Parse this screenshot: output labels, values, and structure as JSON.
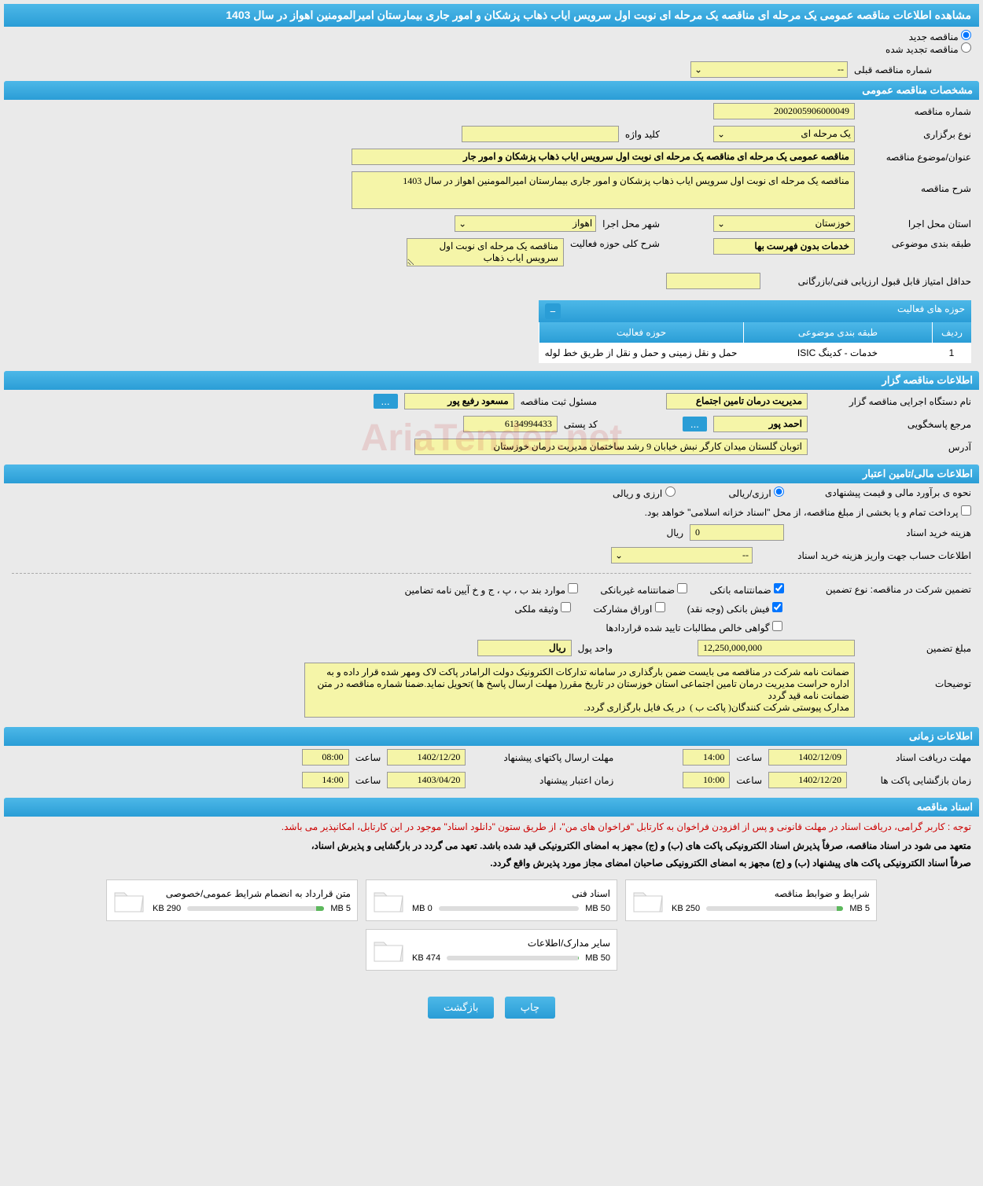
{
  "title": "مشاهده اطلاعات مناقصه عمومی یک مرحله ای مناقصه یک مرحله ای نوبت اول سرویس ایاب ذهاب پزشکان و امور جاری بیمارستان امیرالمومنین اهواز در سال 1403",
  "radios": {
    "new": "مناقصه جدید",
    "renewed": "مناقصه تجدید شده"
  },
  "prev_number": {
    "label": "شماره مناقصه قبلی",
    "value": "--"
  },
  "sections": {
    "general": "مشخصات مناقصه عمومی",
    "organizer": "اطلاعات مناقصه گزار",
    "financial": "اطلاعات مالی/تامین اعتبار",
    "timing": "اطلاعات زمانی",
    "documents": "اسناد مناقصه"
  },
  "general": {
    "tender_number": {
      "label": "شماره مناقصه",
      "value": "2002005906000049"
    },
    "holding_type": {
      "label": "نوع برگزاری",
      "value": "یک مرحله ای"
    },
    "keyword": {
      "label": "کلید واژه",
      "value": ""
    },
    "subject": {
      "label": "عنوان/موضوع مناقصه",
      "value": "مناقصه عمومی یک مرحله ای مناقصه یک مرحله ای نوبت اول سرویس ایاب ذهاب پزشکان و امور جار"
    },
    "description": {
      "label": "شرح مناقصه",
      "value": "مناقصه یک مرحله ای نوبت اول سرویس ایاب ذهاب پزشکان و امور جاری بیمارستان امیرالمومنین اهواز در سال 1403"
    },
    "province": {
      "label": "استان محل اجرا",
      "value": "خوزستان"
    },
    "city": {
      "label": "شهر محل اجرا",
      "value": "اهواز"
    },
    "category": {
      "label": "طبقه بندی موضوعی",
      "value": "خدمات بدون فهرست بها"
    },
    "activity_desc": {
      "label": "شرح کلی حوزه فعالیت",
      "value": "مناقصه یک مرحله ای نوبت اول سرویس ایاب ذهاب"
    },
    "min_score": {
      "label": "حداقل امتیاز قابل قبول ارزیابی فنی/بازرگانی",
      "value": ""
    }
  },
  "activity_table": {
    "title": "حوزه های فعالیت",
    "cols": [
      "ردیف",
      "طبقه بندی موضوعی",
      "حوزه فعالیت"
    ],
    "row": [
      "1",
      "خدمات - کدینگ ISIC",
      "حمل و نقل زمینی و حمل و نقل از طریق خط لوله"
    ]
  },
  "organizer": {
    "exec_name": {
      "label": "نام دستگاه اجرایی مناقصه گزار",
      "value": "مدیریت درمان تامین اجتماع"
    },
    "reg_officer": {
      "label": "مسئول ثبت مناقصه",
      "value": "مسعود رفیع پور"
    },
    "respondent": {
      "label": "مرجع پاسخگویی",
      "value": "احمد پور"
    },
    "postal_code": {
      "label": "کد پستی",
      "value": "6134994433"
    },
    "address": {
      "label": "آدرس",
      "value": "اتوبان گلستان میدان کارگر نبش خیابان 9 رشد ساختمان مدیریت درمان خوزستان"
    }
  },
  "financial": {
    "estimate_method": {
      "label": "نحوه ی برآورد مالی و قیمت پیشنهادی",
      "opt1": "ارزی/ریالی",
      "opt2": "ارزی و ریالی"
    },
    "payment_note": "پرداخت تمام و یا بخشی از مبلغ مناقصه، از محل \"اسناد خزانه اسلامی\" خواهد بود.",
    "doc_cost": {
      "label": "هزینه خرید اسناد",
      "value": "0",
      "unit": "ریال"
    },
    "account_info": {
      "label": "اطلاعات حساب جهت واریز هزینه خرید اسناد",
      "value": "--"
    },
    "guarantee_type": {
      "label": "تضمین شرکت در مناقصه:    نوع تضمین"
    },
    "guarantee_opts": {
      "bank_guarantee": "ضمانتنامه بانکی",
      "nonbank_guarantee": "ضمانتنامه غیربانکی",
      "bylaw_items": "موارد بند ب ، پ ، ج و خ آیین نامه تضامین",
      "bank_receipt": "فیش بانکی (وجه نقد)",
      "participation_bonds": "اوراق مشارکت",
      "property_deed": "وثیقه ملکی",
      "contract_receivables": "گواهی خالص مطالبات تایید شده قراردادها"
    },
    "guarantee_amount": {
      "label": "مبلغ تضمین",
      "value": "12,250,000,000"
    },
    "currency": {
      "label": "واحد پول",
      "value": "ریال"
    },
    "notes": {
      "label": "توضیحات",
      "value": "ضمانت نامه شرکت در مناقصه می بایست ضمن بارگذاری در سامانه تدارکات الکترونیک دولت الرامادر پاکت لاک ومهر شده قرار داده و به اداره حراست مدیریت درمان تامین اجتماعی استان خوزستان در تاریخ مقرر( مهلت ارسال پاسخ ها )تحویل نماید.ضمنا شماره مناقصه در متن ضمانت نامه قید گردد\nمدارک پیوستی شرکت کنندگان( پاکت ب )  در یک فایل بارگزاری گردد."
    }
  },
  "timing": {
    "receive_deadline": {
      "label": "مهلت دریافت اسناد",
      "date": "1402/12/09",
      "time_label": "ساعت",
      "time": "14:00"
    },
    "send_deadline": {
      "label": "مهلت ارسال پاکتهای پیشنهاد",
      "date": "1402/12/20",
      "time_label": "ساعت",
      "time": "08:00"
    },
    "opening_time": {
      "label": "زمان بازگشایی پاکت ها",
      "date": "1402/12/20",
      "time_label": "ساعت",
      "time": "10:00"
    },
    "validity_time": {
      "label": "زمان اعتبار پیشنهاد",
      "date": "1403/04/20",
      "time_label": "ساعت",
      "time": "14:00"
    }
  },
  "doc_notes": {
    "red": "توجه : کاربر گرامی، دریافت اسناد در مهلت قانونی و پس از افزودن فراخوان به کارتابل \"فراخوان های من\"، از طریق ستون \"دانلود اسناد\" موجود در این کارتابل، امکانپذیر می باشد.",
    "bold1": "متعهد می شود در اسناد مناقصه، صرفاً پذیرش اسناد الکترونیکی پاکت های (ب) و (ج) مجهز به امضای الکترونیکی قید شده باشد. تعهد می گردد در بارگشایی و پذیرش اسناد،",
    "bold2": "صرفاً اسناد الکترونیکی پاکت های پیشنهاد (ب) و (ج) مجهز به امضای الکترونیکی صاحبان امضای مجاز مورد پذیرش واقع گردد."
  },
  "documents": [
    {
      "title": "شرایط و ضوابط مناقصه",
      "used": "250 KB",
      "total": "5 MB",
      "percent": 5
    },
    {
      "title": "اسناد فنی",
      "used": "0 MB",
      "total": "50 MB",
      "percent": 0
    },
    {
      "title": "متن قرارداد به انضمام شرایط عمومی/خصوصی",
      "used": "290 KB",
      "total": "5 MB",
      "percent": 6
    },
    {
      "title": "سایر مدارک/اطلاعات",
      "used": "474 KB",
      "total": "50 MB",
      "percent": 1
    }
  ],
  "buttons": {
    "print": "چاپ",
    "back": "بازگشت"
  },
  "watermark": "AriaTender.net",
  "colors": {
    "header_blue": "#2a9dd6",
    "yellow_bg": "#f5f5a8",
    "page_bg": "#eaeaea"
  }
}
